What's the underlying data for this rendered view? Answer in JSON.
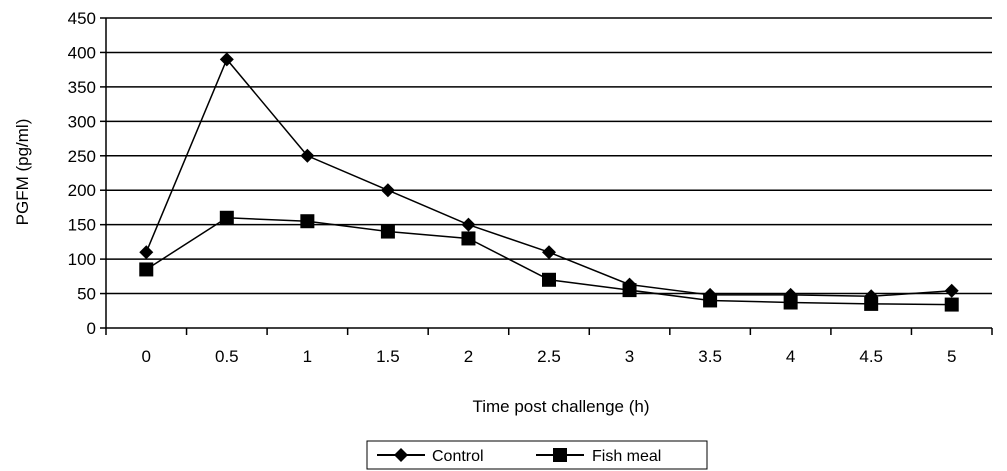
{
  "chart_data": {
    "type": "line",
    "title": "",
    "xlabel": "Time post challenge (h)",
    "ylabel": "PGFM (pg/ml)",
    "ylim": [
      0,
      450
    ],
    "yticks": [
      "0",
      "50",
      "100",
      "150",
      "200",
      "250",
      "300",
      "350",
      "400",
      "450"
    ],
    "categories": [
      "0",
      "0.5",
      "1",
      "1.5",
      "2",
      "2.5",
      "3",
      "3.5",
      "4",
      "4.5",
      "5"
    ],
    "grid": "horizontal",
    "legend_position": "bottom",
    "series": [
      {
        "name": "Control",
        "marker": "diamond",
        "color": "#000000",
        "values": [
          110,
          390,
          250,
          200,
          150,
          110,
          63,
          48,
          48,
          46,
          54
        ]
      },
      {
        "name": "Fish meal",
        "marker": "square",
        "color": "#000000",
        "values": [
          85,
          160,
          155,
          140,
          130,
          70,
          55,
          40,
          37,
          35,
          34
        ]
      }
    ]
  }
}
